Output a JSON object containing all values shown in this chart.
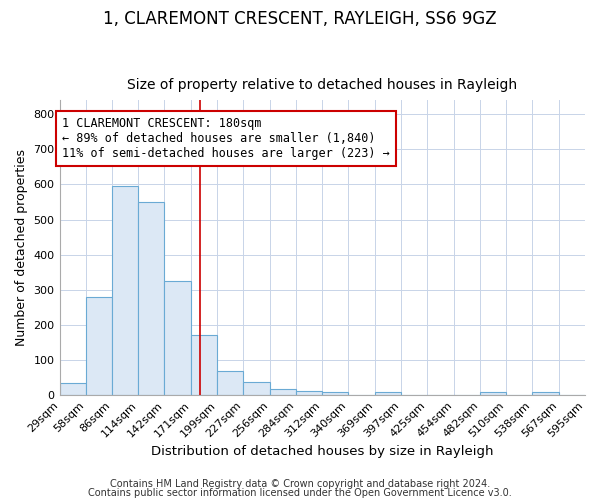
{
  "title": "1, CLAREMONT CRESCENT, RAYLEIGH, SS6 9GZ",
  "subtitle": "Size of property relative to detached houses in Rayleigh",
  "xlabel": "Distribution of detached houses by size in Rayleigh",
  "ylabel": "Number of detached properties",
  "bin_edges": [
    29,
    58,
    86,
    114,
    142,
    171,
    199,
    227,
    256,
    284,
    312,
    340,
    369,
    397,
    425,
    454,
    482,
    510,
    538,
    567,
    595
  ],
  "bar_heights": [
    35,
    280,
    595,
    550,
    325,
    170,
    70,
    38,
    18,
    12,
    10,
    0,
    10,
    0,
    0,
    0,
    10,
    0,
    10,
    0
  ],
  "bar_facecolor": "#dce8f5",
  "bar_edgecolor": "#6aaad4",
  "grid_color": "#c8d4e8",
  "bg_color": "#ffffff",
  "axes_bg_color": "#ffffff",
  "vline_x": 180,
  "vline_color": "#cc0000",
  "annotation_text": "1 CLAREMONT CRESCENT: 180sqm\n← 89% of detached houses are smaller (1,840)\n11% of semi-detached houses are larger (223) →",
  "annotation_box_edgecolor": "#cc0000",
  "annotation_box_facecolor": "#ffffff",
  "footnote1": "Contains HM Land Registry data © Crown copyright and database right 2024.",
  "footnote2": "Contains public sector information licensed under the Open Government Licence v3.0.",
  "ylim": [
    0,
    840
  ],
  "yticks": [
    0,
    100,
    200,
    300,
    400,
    500,
    600,
    700,
    800
  ],
  "title_fontsize": 12,
  "subtitle_fontsize": 10,
  "xlabel_fontsize": 9.5,
  "ylabel_fontsize": 9,
  "tick_fontsize": 8,
  "footnote_fontsize": 7,
  "annotation_fontsize": 8.5
}
